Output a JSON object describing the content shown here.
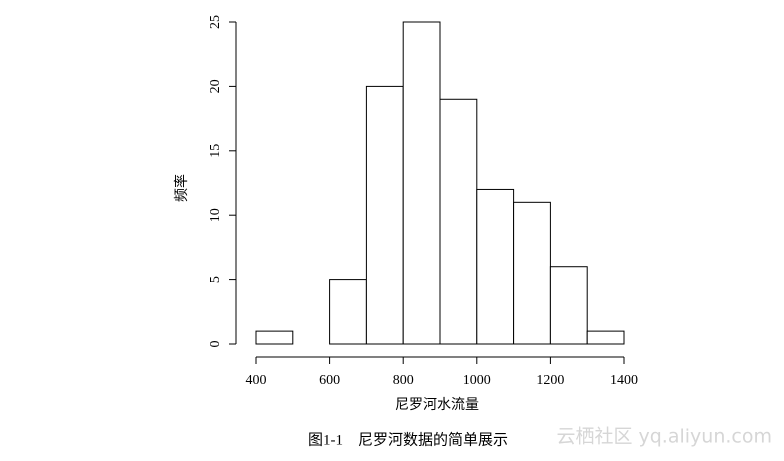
{
  "chart_data": {
    "type": "histogram",
    "xlabel": "尼罗河水流量",
    "ylabel": "频率",
    "bins": [
      400,
      500,
      600,
      700,
      800,
      900,
      1000,
      1100,
      1200,
      1300,
      1400
    ],
    "values": [
      1,
      0,
      5,
      20,
      25,
      19,
      12,
      11,
      6,
      1
    ],
    "color": "#ffffff",
    "edgecolor": "#000000",
    "xlim": [
      400,
      1400
    ],
    "xticks": [
      400,
      600,
      800,
      1000,
      1200,
      1400
    ],
    "ylim": [
      0,
      25
    ],
    "yticks": [
      0,
      5,
      10,
      15,
      20,
      25
    ]
  },
  "caption": "图1-1　尼罗河数据的简单展示",
  "watermark": "云栖社区 yq.aliyun.com"
}
